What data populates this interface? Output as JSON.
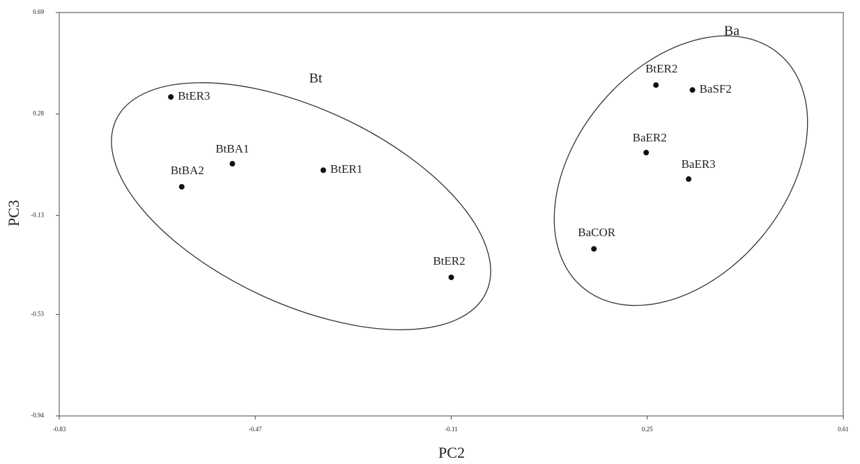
{
  "chart_data": {
    "type": "scatter",
    "x_label": "PC2",
    "y_label": "PC3",
    "xlim": [
      -0.83,
      0.61
    ],
    "xticks": [
      -0.83,
      -0.47,
      -0.11,
      0.25,
      0.61
    ],
    "ylim": [
      -0.94,
      0.69
    ],
    "yticks": [
      0.69,
      0.28,
      -0.13,
      -0.53,
      -0.94
    ],
    "labels": [
      "BtER3",
      "BtBA1",
      "BtBA2",
      "BtER1",
      "BtER2",
      "BtER2",
      "BaSF2",
      "BaER2",
      "BaER3",
      "BaCOR"
    ],
    "x": [
      -0.625,
      -0.512,
      -0.605,
      -0.345,
      -0.11,
      0.266,
      0.333,
      0.248,
      0.326,
      0.152
    ],
    "values": [
      0.349,
      0.079,
      -0.014,
      0.053,
      -0.38,
      0.397,
      0.377,
      0.124,
      0.017,
      -0.265
    ],
    "color": "#111111",
    "annotations": [
      "Bt",
      "Ba"
    ]
  }
}
